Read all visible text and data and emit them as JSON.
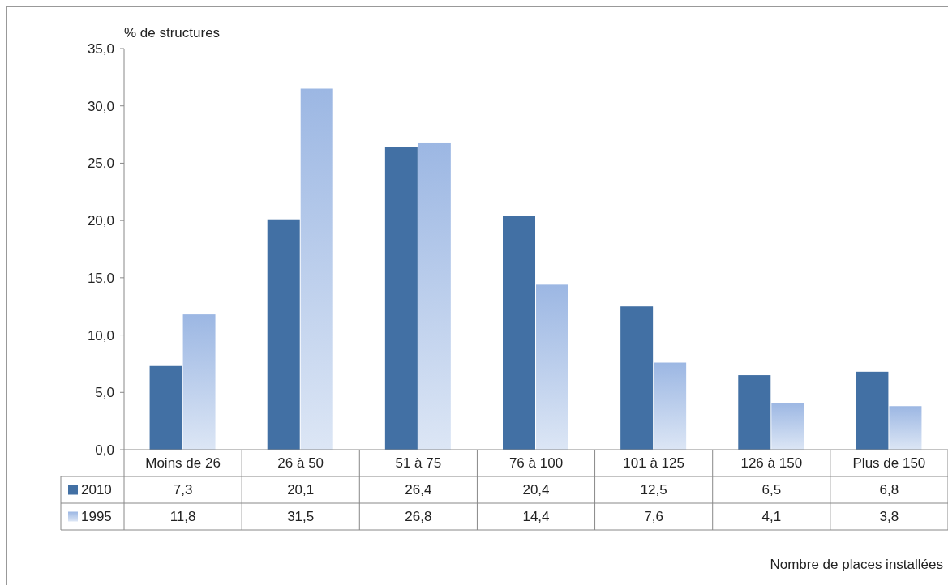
{
  "chart_data": {
    "type": "bar",
    "ylabel": "% de structures",
    "annotations": [
      "Nombre de places installées"
    ],
    "categories": [
      "Moins de 26",
      "26 à 50",
      "51 à 75",
      "76 à 100",
      "101 à 125",
      "126 à 150",
      "Plus de 150"
    ],
    "series": [
      {
        "name": "2010",
        "color": "#4270a4",
        "values": [
          7.3,
          20.1,
          26.4,
          20.4,
          12.5,
          6.5,
          6.8
        ],
        "value_labels": [
          "7,3",
          "20,1",
          "26,4",
          "20,4",
          "12,5",
          "6,5",
          "6,8"
        ]
      },
      {
        "name": "1995",
        "color": "#9cb7e3",
        "values": [
          11.8,
          31.5,
          26.8,
          14.4,
          7.6,
          4.1,
          3.8
        ],
        "value_labels": [
          "11,8",
          "31,5",
          "26,8",
          "14,4",
          "7,6",
          "4,1",
          "3,8"
        ]
      }
    ],
    "ylim": [
      0,
      35
    ],
    "yticks": [
      {
        "value": 0,
        "label": "0,0"
      },
      {
        "value": 5,
        "label": "5,0"
      },
      {
        "value": 10,
        "label": "10,0"
      },
      {
        "value": 15,
        "label": "15,0"
      },
      {
        "value": 20,
        "label": "20,0"
      },
      {
        "value": 25,
        "label": "25,0"
      },
      {
        "value": 30,
        "label": "30,0"
      },
      {
        "value": 35,
        "label": "35,0"
      }
    ],
    "legend": "bottom left",
    "grid": false
  }
}
